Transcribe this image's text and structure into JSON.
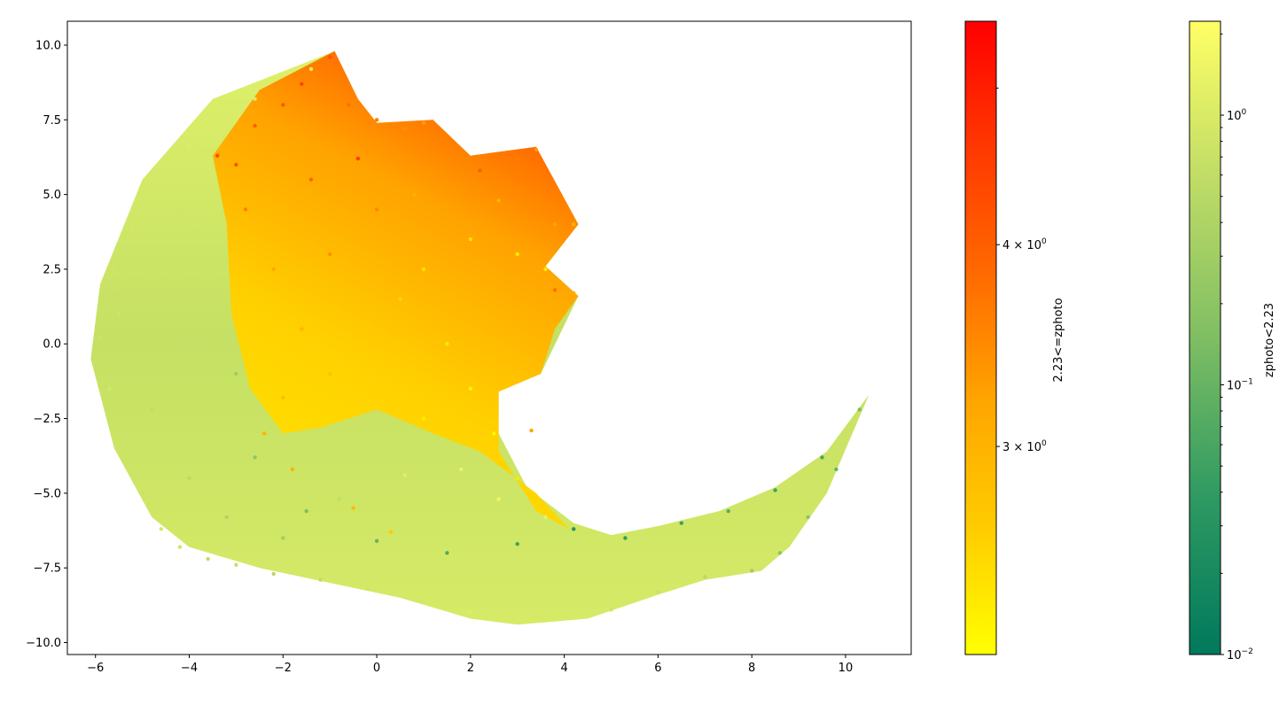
{
  "chart_data": {
    "type": "scatter",
    "title": "",
    "xlabel": "",
    "ylabel": "",
    "xlim": [
      -6.6,
      11.4
    ],
    "ylim": [
      -10.4,
      10.8
    ],
    "x_ticks": [
      -6,
      -4,
      -2,
      0,
      2,
      4,
      6,
      8,
      10
    ],
    "x_tick_labels": [
      "−6",
      "−4",
      "−2",
      "0",
      "2",
      "4",
      "6",
      "8",
      "10"
    ],
    "y_ticks": [
      10.0,
      7.5,
      5.0,
      2.5,
      0.0,
      -2.5,
      -5.0,
      -7.5,
      -10.0
    ],
    "y_tick_labels": [
      "10.0",
      "7.5",
      "5.0",
      "2.5",
      "0.0",
      "−2.5",
      "−5.0",
      "−7.5",
      "−10.0"
    ],
    "grid": false,
    "series": [
      {
        "colormap_stops": [
          "#00795c",
          "#2f9a62",
          "#7fbe63",
          "#bfdc66",
          "#ffff66"
        ],
        "points": [
          [
            -5.9,
            0.2,
            0.8
          ],
          [
            -5.7,
            -1.5,
            0.9
          ],
          [
            -5.5,
            2.5,
            0.7
          ],
          [
            -5.2,
            3.8,
            0.9
          ],
          [
            -5.3,
            -3.5,
            0.8
          ],
          [
            -5.0,
            -5.0,
            0.7
          ],
          [
            -4.6,
            -6.2,
            0.9
          ],
          [
            -4.2,
            -6.8,
            0.8
          ],
          [
            -3.6,
            -7.2,
            0.6
          ],
          [
            -3.0,
            -7.4,
            0.7
          ],
          [
            -2.2,
            -7.7,
            0.5
          ],
          [
            -1.2,
            -7.9,
            0.6
          ],
          [
            -0.2,
            -8.2,
            0.8
          ],
          [
            0.9,
            -8.6,
            0.9
          ],
          [
            2.0,
            -9.0,
            1.1
          ],
          [
            3.0,
            -9.2,
            1.0
          ],
          [
            4.1,
            -9.1,
            0.9
          ],
          [
            5.0,
            -8.9,
            0.8
          ],
          [
            6.0,
            -8.3,
            0.7
          ],
          [
            7.0,
            -7.8,
            0.5
          ],
          [
            8.0,
            -7.6,
            0.3
          ],
          [
            8.6,
            -7.0,
            0.2
          ],
          [
            9.2,
            -5.8,
            0.2
          ],
          [
            9.8,
            -4.2,
            0.1
          ],
          [
            10.3,
            -2.2,
            0.15
          ],
          [
            9.5,
            -3.8,
            0.06
          ],
          [
            8.5,
            -4.9,
            0.05
          ],
          [
            7.5,
            -5.6,
            0.08
          ],
          [
            6.5,
            -6.0,
            0.05
          ],
          [
            5.3,
            -6.5,
            0.04
          ],
          [
            4.2,
            -6.2,
            0.03
          ],
          [
            3.0,
            -6.7,
            0.05
          ],
          [
            1.5,
            -7.0,
            0.07
          ],
          [
            0.0,
            -6.6,
            0.1
          ],
          [
            -1.5,
            -5.6,
            0.15
          ],
          [
            -2.6,
            -3.8,
            0.2
          ],
          [
            -3.0,
            -1.0,
            0.3
          ],
          [
            -3.8,
            4.0,
            0.9
          ],
          [
            -2.6,
            8.2,
            1.0
          ],
          [
            -1.4,
            9.2,
            1.2
          ],
          [
            -4.6,
            5.5,
            0.9
          ],
          [
            -4.0,
            6.6,
            1.1
          ],
          [
            -5.5,
            1.0,
            0.8
          ],
          [
            -4.8,
            -2.2,
            0.6
          ],
          [
            -4.0,
            -4.5,
            0.5
          ],
          [
            -3.2,
            -5.8,
            0.4
          ],
          [
            -2.0,
            -6.5,
            0.3
          ],
          [
            -0.8,
            -5.2,
            0.6
          ],
          [
            0.6,
            -4.4,
            1.2
          ],
          [
            1.8,
            -4.2,
            1.5
          ],
          [
            2.6,
            -5.2,
            1.6
          ],
          [
            3.6,
            -5.8,
            1.3
          ]
        ]
      },
      {
        "colormap_stops": [
          "#ffff00",
          "#ffcc00",
          "#ffa500",
          "#ff6a00",
          "#ff3800",
          "#ff0000"
        ],
        "points": [
          [
            -3.4,
            6.3,
            4.3
          ],
          [
            -3.0,
            6.0,
            4.2
          ],
          [
            -2.6,
            7.3,
            4.0
          ],
          [
            -2.0,
            8.0,
            4.1
          ],
          [
            -1.6,
            8.7,
            4.4
          ],
          [
            -1.0,
            9.6,
            4.2
          ],
          [
            -0.6,
            8.0,
            3.8
          ],
          [
            0.0,
            7.5,
            3.6
          ],
          [
            0.6,
            7.2,
            3.4
          ],
          [
            1.0,
            7.4,
            3.3
          ],
          [
            1.5,
            6.3,
            3.5
          ],
          [
            2.2,
            5.8,
            4.0
          ],
          [
            3.0,
            6.2,
            3.6
          ],
          [
            3.4,
            6.5,
            3.3
          ],
          [
            3.8,
            4.0,
            3.2
          ],
          [
            4.2,
            4.0,
            3.0
          ],
          [
            3.8,
            1.8,
            3.8
          ],
          [
            4.2,
            1.7,
            3.1
          ],
          [
            -2.8,
            4.5,
            3.6
          ],
          [
            -2.2,
            2.5,
            3.2
          ],
          [
            -1.6,
            0.5,
            3.0
          ],
          [
            -1.0,
            -1.0,
            2.8
          ],
          [
            -2.0,
            -1.8,
            2.9
          ],
          [
            -2.4,
            -3.0,
            3.0
          ],
          [
            -1.0,
            3.0,
            3.4
          ],
          [
            0.0,
            4.5,
            3.5
          ],
          [
            0.5,
            1.5,
            2.6
          ],
          [
            1.0,
            2.5,
            2.5
          ],
          [
            1.5,
            0.0,
            2.4
          ],
          [
            2.0,
            -1.5,
            2.3
          ],
          [
            2.5,
            -3.0,
            2.3
          ],
          [
            3.0,
            -4.5,
            2.4
          ],
          [
            2.0,
            3.5,
            2.5
          ],
          [
            2.6,
            4.8,
            3.0
          ],
          [
            3.0,
            3.0,
            2.4
          ],
          [
            1.0,
            -2.5,
            2.4
          ],
          [
            -1.4,
            5.5,
            3.9
          ],
          [
            -0.4,
            6.2,
            4.5
          ],
          [
            0.8,
            5.0,
            3.0
          ],
          [
            3.3,
            -2.9,
            3.2
          ],
          [
            -0.5,
            -5.5,
            2.9
          ],
          [
            0.3,
            -6.3,
            2.7
          ],
          [
            -1.8,
            -4.2,
            3.0
          ],
          [
            3.6,
            2.5,
            2.4
          ]
        ]
      }
    ],
    "colorbars": [
      {
        "label": "2.23<=zphoto",
        "scale": "log",
        "range": [
          2.23,
          5.5
        ],
        "tick_values": [
          3,
          4
        ],
        "tick_labels": [
          "3 × 10",
          "4 × 10"
        ],
        "tick_exponent": "0",
        "minor_ticks": [
          5
        ],
        "colors": [
          "#ffff00",
          "#ffcc00",
          "#ffa500",
          "#ff6a00",
          "#ff3800",
          "#ff0000"
        ]
      },
      {
        "label": "zphoto<2.23",
        "scale": "log",
        "range": [
          0.01,
          2.23
        ],
        "tick_values": [
          1,
          0.1,
          0.01
        ],
        "tick_labels": [
          "10",
          "10",
          "10"
        ],
        "tick_exponents": [
          "0",
          "−1",
          "−2"
        ],
        "colors": [
          "#00795c",
          "#2f9a62",
          "#7fbe63",
          "#bfdc66",
          "#ffff66"
        ]
      }
    ]
  }
}
